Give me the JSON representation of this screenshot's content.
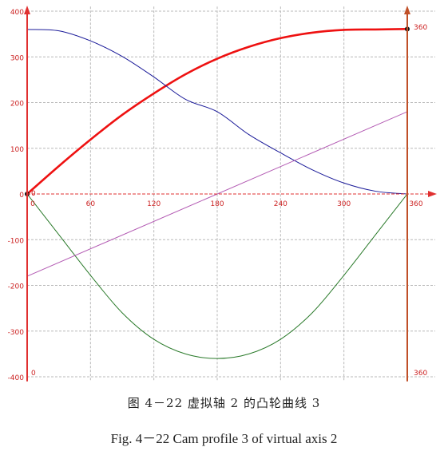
{
  "caption": {
    "chinese": "图 4－22 虚拟轴 2 的凸轮曲线 3",
    "english": "Fig. 4－22 Cam profile 3 of virtual axis 2"
  },
  "chart_data": {
    "type": "line",
    "title": "",
    "xlabel": "",
    "ylabel": "",
    "xlim": [
      0,
      360
    ],
    "ylim": [
      -410,
      410
    ],
    "x_ticks": [
      0,
      60,
      120,
      180,
      240,
      300,
      360
    ],
    "x_tick_labels": [
      "0",
      "60",
      "120",
      "180",
      "240",
      "300",
      "360"
    ],
    "y_ticks": [
      400,
      300,
      200,
      100,
      0,
      -100,
      -200,
      -300,
      -400
    ],
    "y_tick_labels": [
      "400",
      "300",
      "200",
      "100",
      "0",
      "-100",
      "-200",
      "-300",
      "-400"
    ],
    "right_axis_labels": {
      "top": "360",
      "bottom": "360"
    },
    "left_inner_labels": {
      "top": "0",
      "bottom": "0"
    },
    "grid": true,
    "colors": {
      "axis": "#e03030",
      "right_axis": "#c05028",
      "grid": "#b8b8b8",
      "position": "#ee1111",
      "velocity": "#1a1a99",
      "acceleration": "#2a7a2a",
      "jerk": "#b35ab3"
    },
    "series": [
      {
        "key": "position",
        "x": [
          0,
          30,
          60,
          90,
          120,
          150,
          180,
          210,
          240,
          270,
          300,
          330,
          360
        ],
        "values": [
          0,
          61,
          119,
          173,
          220,
          262,
          296,
          322,
          341,
          353,
          359,
          360,
          361
        ]
      },
      {
        "key": "velocity",
        "x": [
          0,
          30,
          60,
          90,
          120,
          150,
          180,
          210,
          240,
          270,
          300,
          330,
          360
        ],
        "values": [
          360,
          357,
          335,
          301,
          256,
          207,
          180,
          130,
          90,
          53,
          24,
          6,
          0
        ]
      },
      {
        "key": "acceleration",
        "x": [
          0,
          30,
          60,
          90,
          120,
          150,
          180,
          210,
          240,
          270,
          300,
          330,
          360
        ],
        "values": [
          0,
          -89,
          -178,
          -260,
          -318,
          -350,
          -360,
          -350,
          -318,
          -260,
          -178,
          -89,
          0
        ]
      },
      {
        "key": "jerk",
        "x": [
          0,
          360
        ],
        "values": [
          -180,
          180
        ]
      }
    ]
  }
}
